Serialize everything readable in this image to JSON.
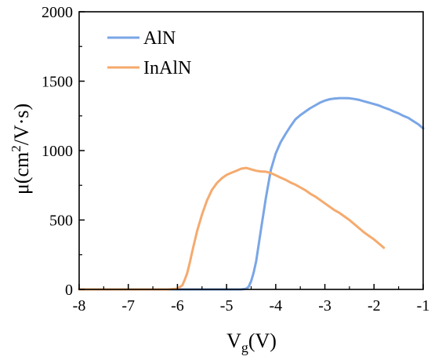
{
  "chart_data": {
    "type": "line",
    "xlabel_main": "V",
    "xlabel_sub": "g",
    "xlabel_tail": "(V)",
    "ylabel_main": "μ(cm",
    "ylabel_sup": "2",
    "ylabel_tail": "/V·s)",
    "xlim": [
      -8,
      -1
    ],
    "ylim": [
      0,
      2000
    ],
    "x_ticks": [
      -8,
      -7,
      -6,
      -5,
      -4,
      -3,
      -2,
      -1
    ],
    "x_tick_labels": [
      "-8",
      "-7",
      "-6",
      "-5",
      "-4",
      "-3",
      "-2",
      "-1"
    ],
    "y_ticks": [
      0,
      500,
      1000,
      1500,
      2000
    ],
    "y_tick_labels": [
      "0",
      "500",
      "1000",
      "1500",
      "2000"
    ],
    "grid": false,
    "legend_placement": "top-left",
    "series": [
      {
        "name": "AlN",
        "color": "#7aa6e6",
        "x": [
          -8,
          -7,
          -6,
          -5,
          -4.7,
          -4.6,
          -4.55,
          -4.5,
          -4.45,
          -4.4,
          -4.3,
          -4.2,
          -4.1,
          -4.0,
          -3.9,
          -3.8,
          -3.7,
          -3.6,
          -3.5,
          -3.4,
          -3.3,
          -3.2,
          -3.1,
          -3.0,
          -2.9,
          -2.8,
          -2.7,
          -2.6,
          -2.5,
          -2.4,
          -2.3,
          -2.2,
          -2.1,
          -2.0,
          -1.9,
          -1.8,
          -1.7,
          -1.6,
          -1.5,
          -1.4,
          -1.3,
          -1.2,
          -1.1,
          -1.0
        ],
        "y": [
          0,
          0,
          0,
          0,
          0,
          5,
          20,
          60,
          120,
          200,
          430,
          660,
          860,
          980,
          1060,
          1120,
          1175,
          1225,
          1255,
          1280,
          1305,
          1325,
          1345,
          1360,
          1370,
          1375,
          1378,
          1378,
          1377,
          1372,
          1365,
          1355,
          1345,
          1335,
          1325,
          1310,
          1298,
          1282,
          1268,
          1250,
          1235,
          1212,
          1190,
          1160
        ]
      },
      {
        "name": "InAlN",
        "color": "#f5aa6e",
        "x": [
          -8,
          -7,
          -6.2,
          -6.0,
          -5.9,
          -5.85,
          -5.8,
          -5.75,
          -5.7,
          -5.6,
          -5.5,
          -5.4,
          -5.3,
          -5.2,
          -5.1,
          -5.0,
          -4.9,
          -4.8,
          -4.7,
          -4.6,
          -4.5,
          -4.4,
          -4.3,
          -4.2,
          -4.1,
          -4.0,
          -3.9,
          -3.8,
          -3.7,
          -3.6,
          -3.5,
          -3.4,
          -3.3,
          -3.2,
          -3.1,
          -3.0,
          -2.9,
          -2.8,
          -2.7,
          -2.6,
          -2.5,
          -2.4,
          -2.3,
          -2.2,
          -2.1,
          -2.0,
          -1.9,
          -1.8
        ],
        "y": [
          0,
          0,
          0,
          5,
          30,
          70,
          120,
          190,
          270,
          420,
          540,
          640,
          715,
          765,
          800,
          825,
          840,
          855,
          870,
          875,
          865,
          855,
          850,
          848,
          838,
          822,
          805,
          790,
          770,
          755,
          735,
          715,
          690,
          670,
          645,
          620,
          595,
          570,
          550,
          525,
          500,
          470,
          440,
          410,
          385,
          360,
          330,
          300
        ]
      }
    ]
  }
}
